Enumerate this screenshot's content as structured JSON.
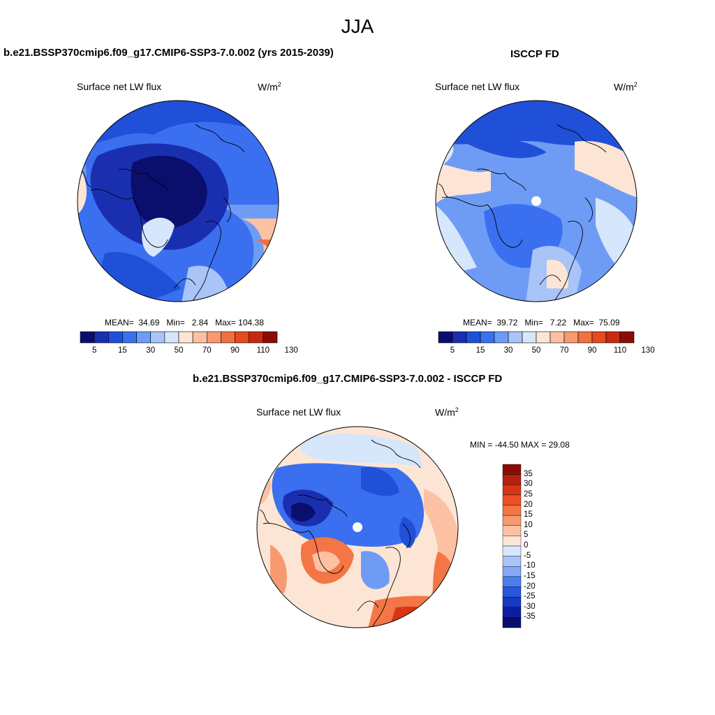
{
  "figure": {
    "season": "JJA"
  },
  "panels": {
    "model": {
      "title": "b.e21.BSSP370cmip6.f09_g17.CMIP6-SSP3-7.0.002 (yrs 2015-2039)",
      "variable": "Surface net LW flux",
      "units_base": "W/m",
      "units_exp": "2",
      "mean_label": "MEAN=",
      "mean_value": "34.69",
      "min_label": "Min=",
      "min_value": "2.84",
      "max_label": "Max=",
      "max_value": "104.38",
      "colorbar_ticks": [
        "5",
        "15",
        "30",
        "50",
        "70",
        "90",
        "110",
        "130"
      ]
    },
    "obs": {
      "title": "ISCCP FD",
      "variable": "Surface net LW flux",
      "units_base": "W/m",
      "units_exp": "2",
      "mean_label": "MEAN=",
      "mean_value": "39.72",
      "min_label": "Min=",
      "min_value": "7.22",
      "max_label": "Max=",
      "max_value": "75.09",
      "colorbar_ticks": [
        "5",
        "15",
        "30",
        "50",
        "70",
        "90",
        "110",
        "130"
      ]
    },
    "diff": {
      "title": "b.e21.BSSP370cmip6.f09_g17.CMIP6-SSP3-7.0.002 - ISCCP FD",
      "variable": "Surface net LW flux",
      "units_base": "W/m",
      "units_exp": "2",
      "minmax_text": "MIN = -44.50 MAX =  29.08",
      "colorbar_ticks": [
        "35",
        "30",
        "25",
        "20",
        "15",
        "10",
        "5",
        "0",
        "-5",
        "-10",
        "-15",
        "-20",
        "-25",
        "-30",
        "-35"
      ]
    }
  },
  "palettes": {
    "full": [
      "#0a0f6e",
      "#1a2fb0",
      "#2050d8",
      "#3a6ff0",
      "#6e9cf5",
      "#a9c4f7",
      "#d6e6fb",
      "#fde5d5",
      "#fbc1a2",
      "#f79a72",
      "#f1703f",
      "#e64a1e",
      "#c52b10",
      "#8a0d05"
    ],
    "diff": [
      "#8a0d05",
      "#b5200c",
      "#d83515",
      "#ee5024",
      "#f47545",
      "#f79a72",
      "#fbc1a2",
      "#fde5d5",
      "#d6e6fb",
      "#a9c4f7",
      "#86a8f5",
      "#4a7ff0",
      "#2a57e0",
      "#1738c0",
      "#0c1ea0",
      "#0a0f6e"
    ],
    "coast": "#000000"
  }
}
